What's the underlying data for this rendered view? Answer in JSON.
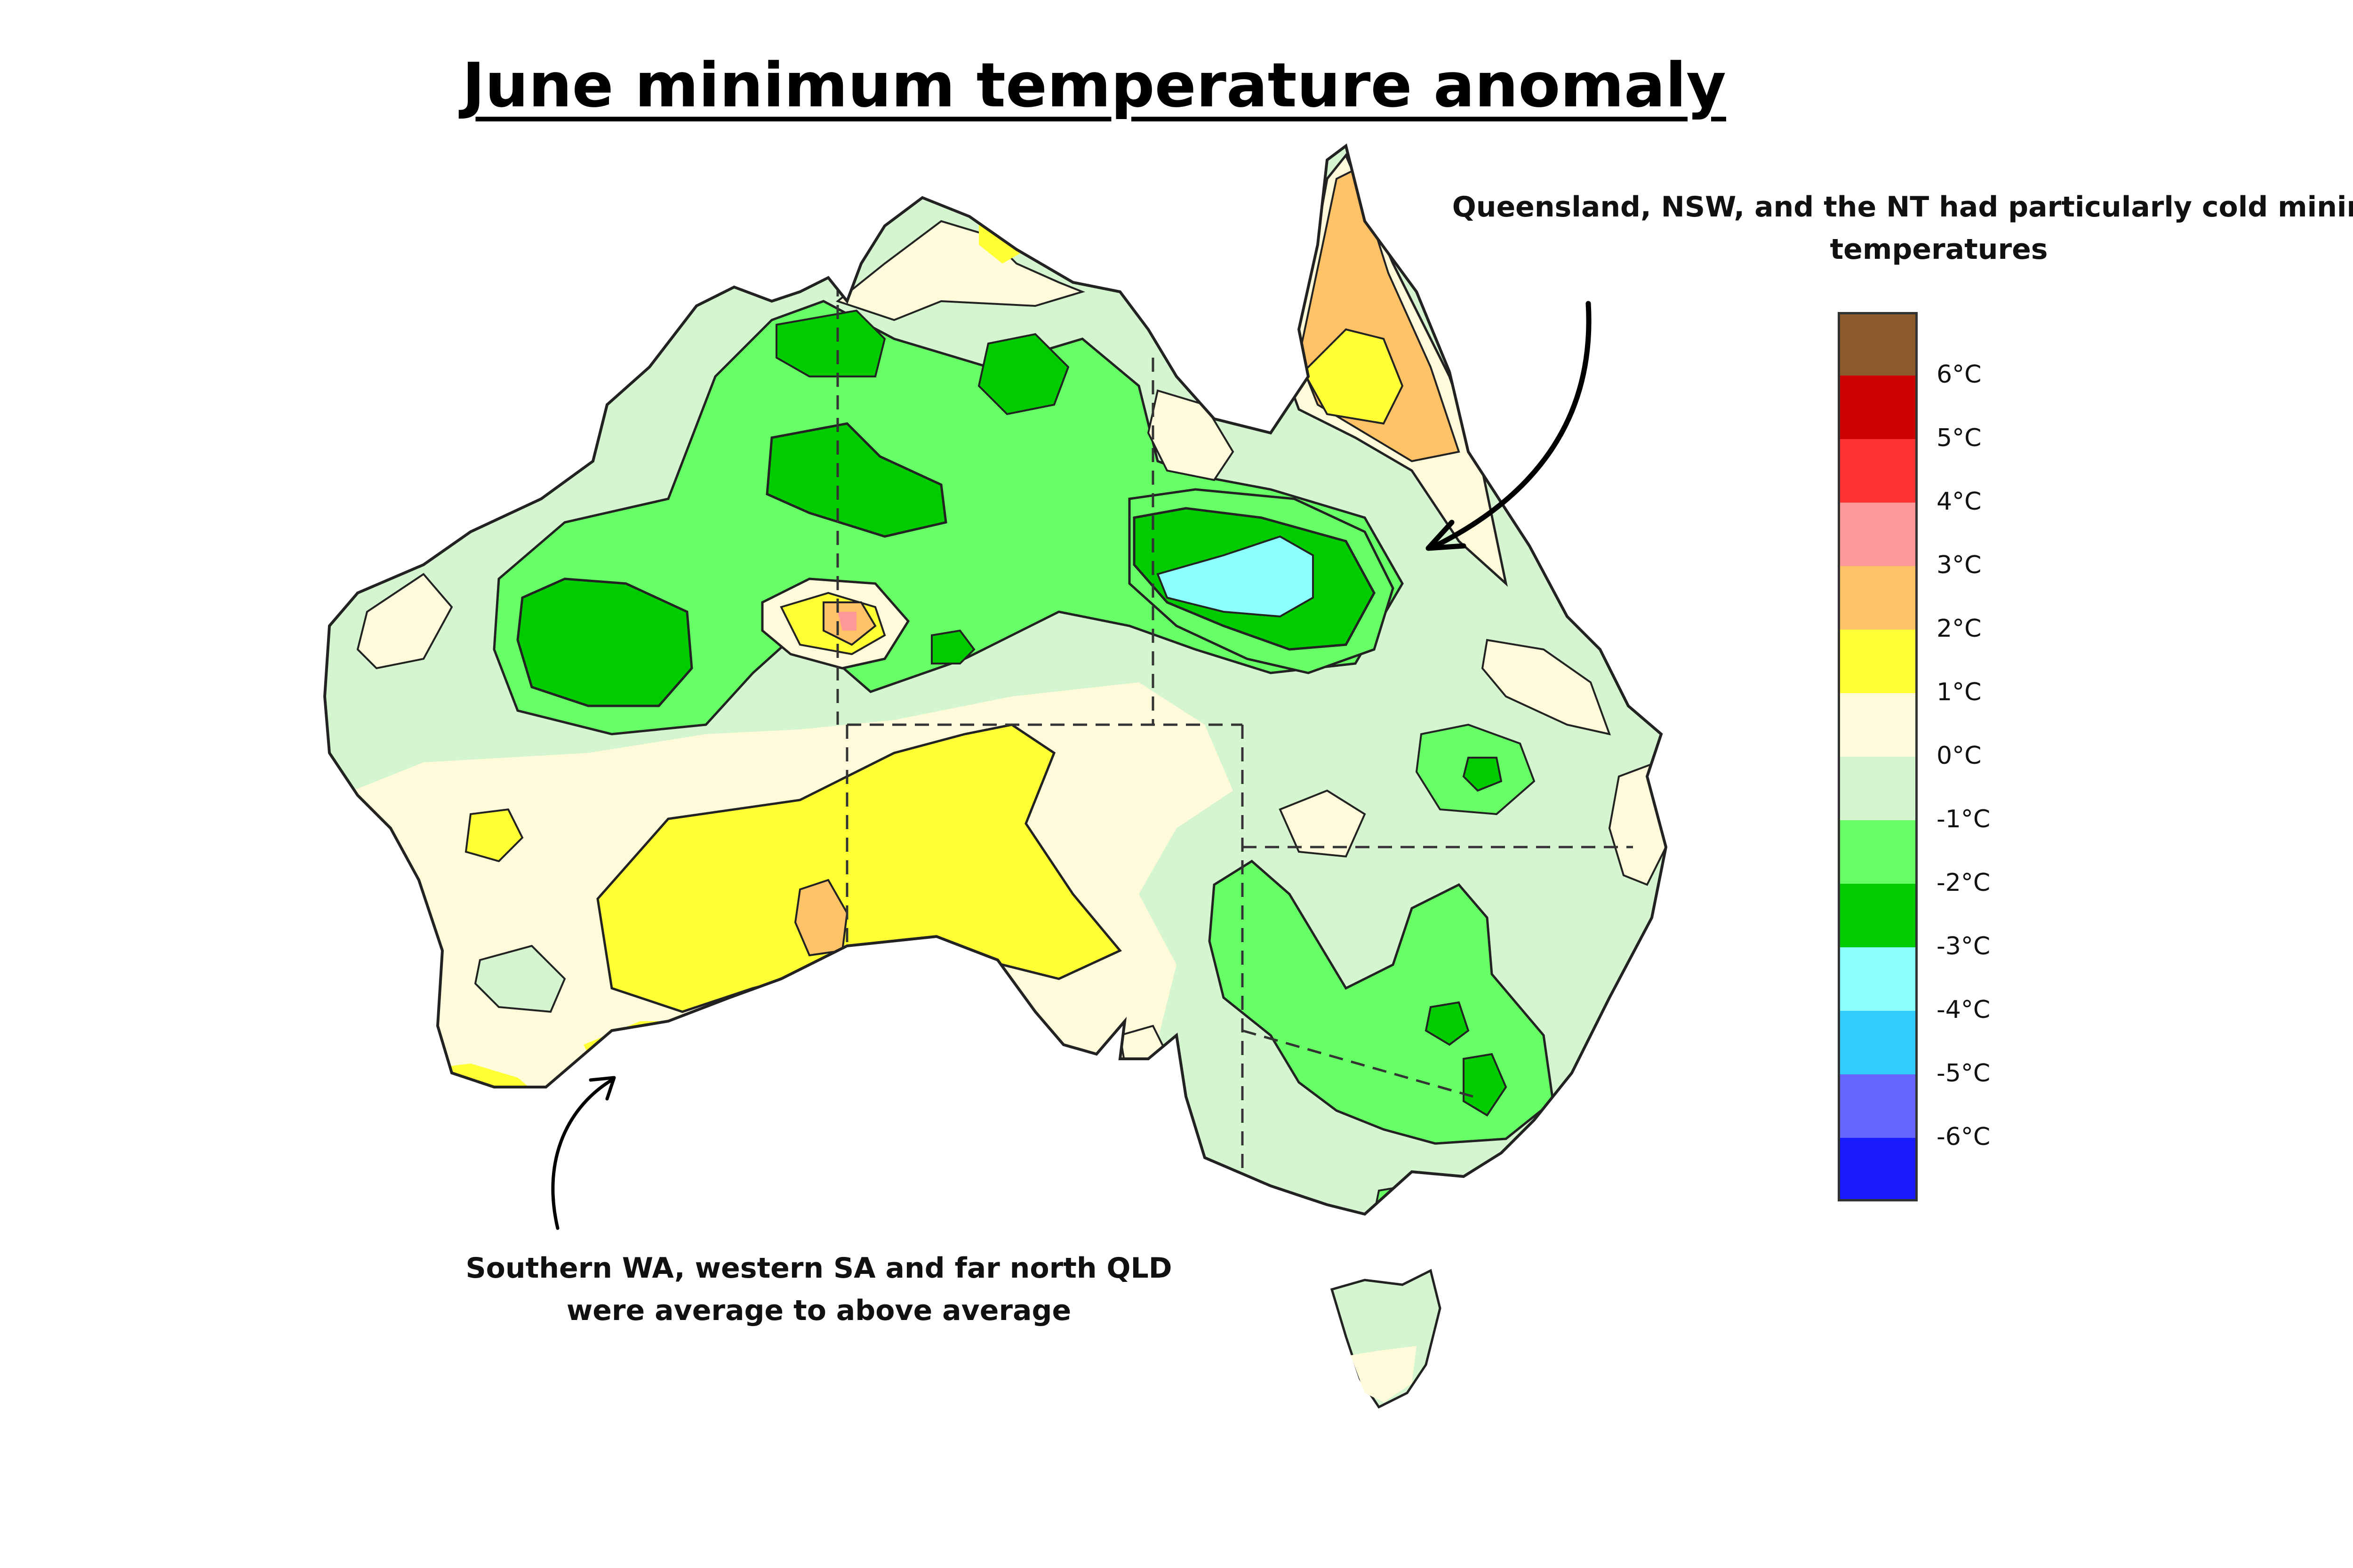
{
  "title": "June minimum temperature anomaly",
  "annotations": {
    "northeast": "Queensland, NSW, and the NT  had particularly cold minimum temperatures",
    "southwest": "Southern WA, western SA and far north QLD were average to above average"
  },
  "legend": {
    "colors": [
      "#8b5a2b",
      "#cc0000",
      "#ff3333",
      "#ff9999",
      "#ffc266",
      "#ffff33",
      "#fffad9",
      "#d4f5cf",
      "#66ff66",
      "#00cc00",
      "#8cffff",
      "#33ccff",
      "#6666ff",
      "#1a1aff"
    ],
    "labels": [
      "6°C",
      "5°C",
      "4°C",
      "3°C",
      "2°C",
      "1°C",
      "0°C",
      "-1°C",
      "-2°C",
      "-3°C",
      "-4°C",
      "-5°C",
      "-6°C"
    ]
  },
  "colors": {
    "above_0_to_1": "#fffad9",
    "above_1_to_2": "#ffff33",
    "above_2_to_3": "#ffc266",
    "above_3_to_4": "#ff9999",
    "below_0_to_1": "#d4f5cf",
    "below_1_to_2": "#66ff66",
    "below_2_to_3": "#00cc00",
    "below_3_to_4": "#8cffff"
  }
}
